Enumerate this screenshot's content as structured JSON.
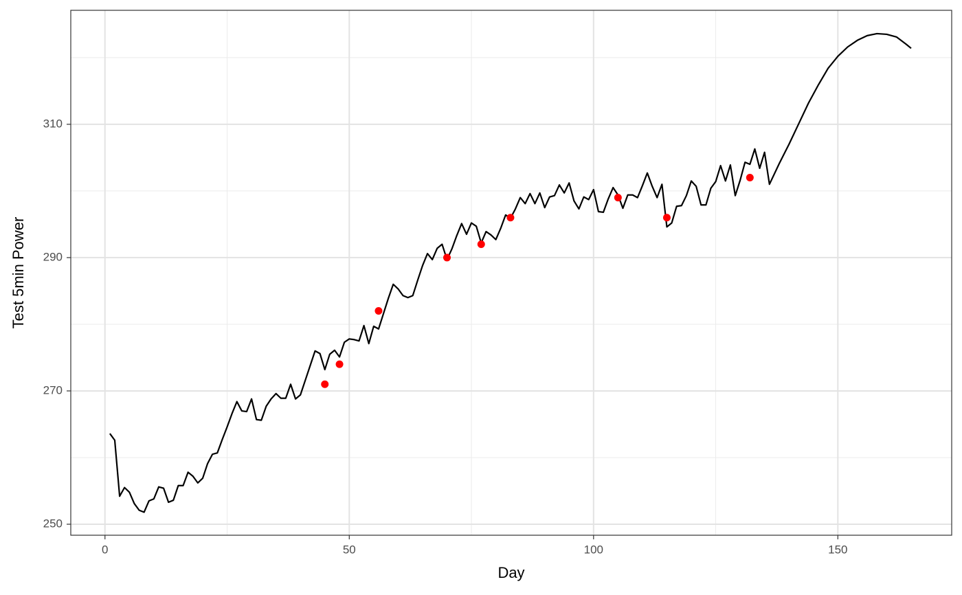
{
  "chart_data": {
    "type": "line",
    "x_label": "Day",
    "y_label": "Test 5min Power",
    "xlim": [
      -7,
      173.3
    ],
    "ylim": [
      248.35,
      327.1
    ],
    "xticks": [
      0,
      50,
      100,
      150
    ],
    "yticks": [
      250,
      270,
      290,
      310
    ],
    "grid": true,
    "minor_grid": true,
    "series": [
      {
        "type": "line",
        "color": "#000000",
        "x": [
          1,
          2,
          3,
          4,
          5,
          6,
          7,
          8,
          9,
          10,
          11,
          12,
          13,
          14,
          15,
          16,
          17,
          18,
          19,
          20,
          21,
          22,
          23,
          24,
          25,
          26,
          27,
          28,
          29,
          30,
          31,
          32,
          33,
          34,
          35,
          36,
          37,
          38,
          39,
          40,
          41,
          42,
          43,
          44,
          45,
          46,
          47,
          48,
          49,
          50,
          51,
          52,
          53,
          54,
          55,
          56,
          57,
          58,
          59,
          60,
          61,
          62,
          63,
          64,
          65,
          66,
          67,
          68,
          69,
          70,
          71,
          72,
          73,
          74,
          75,
          76,
          77,
          78,
          79,
          80,
          81,
          82,
          83,
          84,
          85,
          86,
          87,
          88,
          89,
          90,
          91,
          92,
          93,
          94,
          95,
          96,
          97,
          98,
          99,
          100,
          101,
          102,
          103,
          104,
          105,
          106,
          107,
          108,
          109,
          110,
          111,
          112,
          113,
          114,
          115,
          116,
          117,
          118,
          119,
          120,
          121,
          122,
          123,
          124,
          125,
          126,
          127,
          128,
          129,
          130,
          131,
          132,
          133,
          134,
          135,
          136,
          138,
          140,
          142,
          144,
          146,
          148,
          150,
          152,
          154,
          156,
          158,
          160,
          162,
          164,
          165
        ],
        "values": [
          263.6,
          262.6,
          254.2,
          255.5,
          254.8,
          253.1,
          252.1,
          251.8,
          253.5,
          253.8,
          255.6,
          255.4,
          253.3,
          253.6,
          255.8,
          255.8,
          257.8,
          257.2,
          256.2,
          256.9,
          259.1,
          260.5,
          260.7,
          262.7,
          264.6,
          266.6,
          268.4,
          267.0,
          266.9,
          268.8,
          265.7,
          265.6,
          267.7,
          268.8,
          269.6,
          268.9,
          268.9,
          271.0,
          268.8,
          269.4,
          271.6,
          273.8,
          276.0,
          275.6,
          273.2,
          275.5,
          276.1,
          275.1,
          277.3,
          277.8,
          277.7,
          277.5,
          279.8,
          277.1,
          279.7,
          279.3,
          281.6,
          283.9,
          286.0,
          285.3,
          284.3,
          284.0,
          284.3,
          286.6,
          288.8,
          290.6,
          289.7,
          291.4,
          292.0,
          289.7,
          291.3,
          293.3,
          295.1,
          293.5,
          295.2,
          294.7,
          292.2,
          293.9,
          293.4,
          292.7,
          294.4,
          296.4,
          295.9,
          297.3,
          299.0,
          298.1,
          299.6,
          298.1,
          299.7,
          297.5,
          299.1,
          299.3,
          300.9,
          299.7,
          301.2,
          298.5,
          297.3,
          299.1,
          298.7,
          300.2,
          296.9,
          296.8,
          298.8,
          300.5,
          299.4,
          297.4,
          299.4,
          299.4,
          299.0,
          300.8,
          302.7,
          300.7,
          299.0,
          301.0,
          294.6,
          295.2,
          297.7,
          297.8,
          299.3,
          301.5,
          300.7,
          297.9,
          297.9,
          300.4,
          301.4,
          303.8,
          301.5,
          303.9,
          299.3,
          301.6,
          304.3,
          304.0,
          306.3,
          303.4,
          305.8,
          301.0,
          304.1,
          307.0,
          310.1,
          313.2,
          315.9,
          318.4,
          320.2,
          321.6,
          322.6,
          323.3,
          323.6,
          323.5,
          323.1,
          322.0,
          321.4
        ]
      },
      {
        "type": "scatter",
        "color": "#ff0000",
        "x": [
          45,
          48,
          56,
          70,
          77,
          83,
          105,
          115,
          132
        ],
        "values": [
          271,
          274,
          282,
          290,
          292,
          296,
          299,
          296,
          302
        ]
      }
    ]
  }
}
